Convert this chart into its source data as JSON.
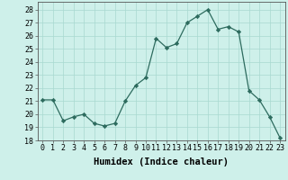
{
  "x": [
    0,
    1,
    2,
    3,
    4,
    5,
    6,
    7,
    8,
    9,
    10,
    11,
    12,
    13,
    14,
    15,
    16,
    17,
    18,
    19,
    20,
    21,
    22,
    23
  ],
  "y": [
    21.1,
    21.1,
    19.5,
    19.8,
    20.0,
    19.3,
    19.1,
    19.3,
    21.0,
    22.2,
    22.8,
    25.8,
    25.1,
    25.4,
    27.0,
    27.5,
    28.0,
    26.5,
    26.7,
    26.3,
    21.8,
    21.1,
    19.8,
    18.2
  ],
  "line_color": "#2d6b5e",
  "marker": "D",
  "marker_size": 2.2,
  "bg_color": "#cef0ea",
  "grid_color": "#a8d8d0",
  "xlabel": "Humidex (Indice chaleur)",
  "ylabel_ticks": [
    18,
    19,
    20,
    21,
    22,
    23,
    24,
    25,
    26,
    27,
    28
  ],
  "xlim": [
    -0.5,
    23.5
  ],
  "ylim": [
    18,
    28.6
  ],
  "xticks": [
    0,
    1,
    2,
    3,
    4,
    5,
    6,
    7,
    8,
    9,
    10,
    11,
    12,
    13,
    14,
    15,
    16,
    17,
    18,
    19,
    20,
    21,
    22,
    23
  ],
  "xlabel_fontsize": 7.5,
  "tick_fontsize": 6.0,
  "line_width": 0.9
}
